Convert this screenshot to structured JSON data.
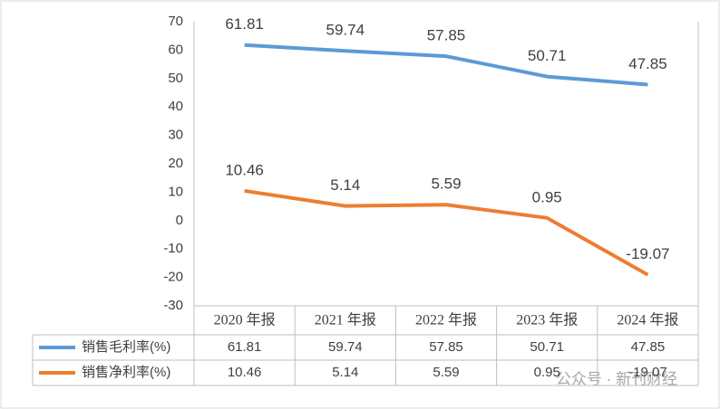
{
  "chart_data": {
    "type": "line",
    "categories": [
      "2020 年报",
      "2021 年报",
      "2022 年报",
      "2023 年报",
      "2024 年报"
    ],
    "series": [
      {
        "name": "销售毛利率(%)",
        "color": "#5b9bd5",
        "values": [
          61.81,
          59.74,
          57.85,
          50.71,
          47.85
        ]
      },
      {
        "name": "销售净利率(%)",
        "color": "#ed7d31",
        "values": [
          10.46,
          5.14,
          5.59,
          0.95,
          -19.07
        ]
      }
    ],
    "ylim": [
      -30,
      70
    ],
    "yticks": [
      70,
      60,
      50,
      40,
      30,
      20,
      10,
      0,
      -10,
      -20,
      -30
    ],
    "grid": false,
    "data_table": true
  },
  "watermark": "公众号 · 新刊财经"
}
